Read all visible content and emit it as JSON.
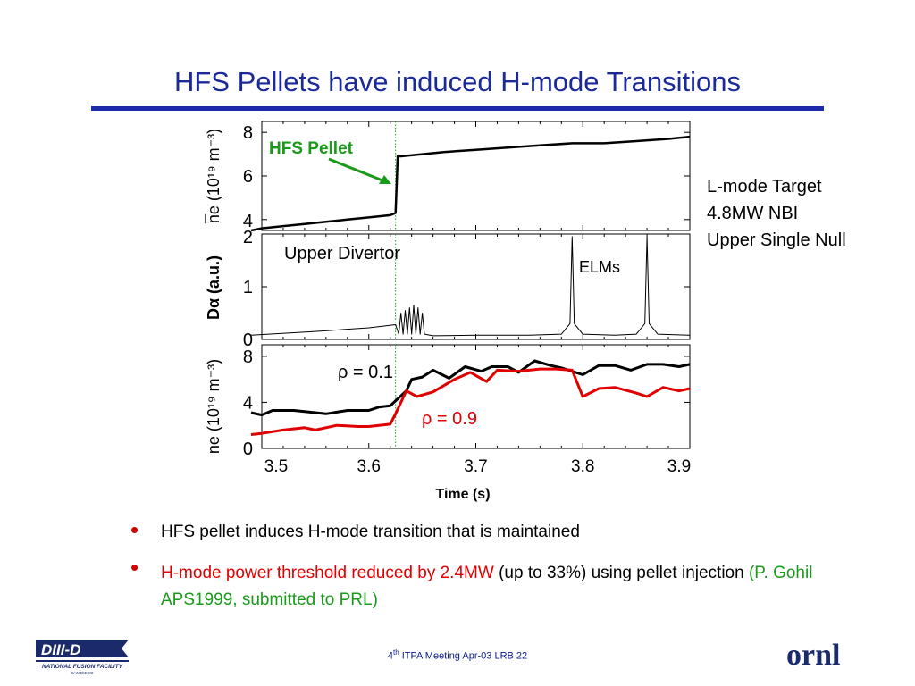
{
  "title": "HFS Pellets have induced H-mode Transitions",
  "side_notes": [
    "L-mode Target",
    "4.8MW NBI",
    "Upper Single Null"
  ],
  "bullets": [
    {
      "parts": [
        {
          "text": "HFS pellet induces H-mode transition that is maintained",
          "color": "black"
        }
      ]
    },
    {
      "parts": [
        {
          "text": "H-mode power threshold reduced by 2.4MW",
          "color": "red"
        },
        {
          "text": " (up to 33%)  using pellet injection  ",
          "color": "black"
        },
        {
          "text": "(P. Gohil  APS1999, submitted to PRL)",
          "color": "green"
        }
      ]
    }
  ],
  "footer": {
    "sup": "th",
    "pre": "4",
    "text": " ITPA Meeting  Apr-03   LRB     22"
  },
  "logos": {
    "left": "DIII-D",
    "left_sub": "NATIONAL FUSION FACILITY",
    "left_sub2": "SAN DIEGO",
    "right": "ornl"
  },
  "colors": {
    "title": "#1a2a9a",
    "accent_rule": "#1a2aa8",
    "red": "#e00000",
    "green": "#1a9a1a"
  },
  "chart_data": [
    {
      "type": "line",
      "ylabel": "n̅e (10¹⁹ m⁻³)",
      "yticks": [
        4,
        6,
        8
      ],
      "ylim": [
        3.5,
        8.5
      ],
      "xlim": [
        3.5,
        3.9
      ],
      "pellet_time": 3.625,
      "annotations": [
        {
          "text": "HFS Pellet",
          "color": "#1a9a1a"
        }
      ],
      "series": [
        {
          "color": "#000000",
          "x": [
            3.49,
            3.5,
            3.52,
            3.54,
            3.56,
            3.58,
            3.6,
            3.62,
            3.625,
            3.627,
            3.63,
            3.65,
            3.67,
            3.7,
            3.73,
            3.76,
            3.79,
            3.82,
            3.85,
            3.88,
            3.9
          ],
          "y": [
            3.5,
            3.6,
            3.7,
            3.8,
            3.9,
            4.0,
            4.1,
            4.2,
            4.3,
            6.9,
            6.9,
            7.0,
            7.1,
            7.2,
            7.3,
            7.4,
            7.5,
            7.5,
            7.6,
            7.7,
            7.8
          ]
        }
      ]
    },
    {
      "type": "line",
      "ylabel": "Dα (a.u.)",
      "yticks": [
        0,
        1,
        2
      ],
      "ylim": [
        0,
        2.0
      ],
      "xlim": [
        3.5,
        3.9
      ],
      "annotations": [
        {
          "text": "Upper Divertor",
          "color": "#000000"
        },
        {
          "text": "ELMs",
          "color": "#000000"
        }
      ],
      "series": [
        {
          "color": "#000000",
          "x": [
            3.49,
            3.55,
            3.6,
            3.625,
            3.628,
            3.63,
            3.632,
            3.634,
            3.636,
            3.638,
            3.64,
            3.642,
            3.644,
            3.646,
            3.648,
            3.65,
            3.652,
            3.66,
            3.7,
            3.75,
            3.78,
            3.788,
            3.79,
            3.792,
            3.8,
            3.83,
            3.85,
            3.858,
            3.86,
            3.862,
            3.87,
            3.9
          ],
          "y": [
            0.08,
            0.15,
            0.22,
            0.28,
            0.1,
            0.5,
            0.1,
            0.55,
            0.1,
            0.6,
            0.1,
            0.65,
            0.1,
            0.6,
            0.1,
            0.5,
            0.1,
            0.07,
            0.08,
            0.08,
            0.1,
            0.3,
            1.95,
            0.3,
            0.1,
            0.08,
            0.1,
            0.3,
            1.95,
            0.3,
            0.1,
            0.08
          ]
        }
      ]
    },
    {
      "type": "line",
      "ylabel": "ne (10¹⁹ m⁻³)",
      "xlabel": "Time (s)",
      "yticks": [
        0,
        4,
        8
      ],
      "xticks": [
        "3.5",
        "3.6",
        "3.7",
        "3.8",
        "3.9"
      ],
      "ylim": [
        0,
        9
      ],
      "xlim": [
        3.5,
        3.9
      ],
      "series": [
        {
          "name": "ρ = 0.1",
          "color": "#000000",
          "x": [
            3.49,
            3.5,
            3.51,
            3.53,
            3.56,
            3.58,
            3.6,
            3.61,
            3.62,
            3.635,
            3.64,
            3.65,
            3.66,
            3.675,
            3.69,
            3.705,
            3.715,
            3.73,
            3.74,
            3.755,
            3.77,
            3.78,
            3.8,
            3.815,
            3.83,
            3.845,
            3.86,
            3.875,
            3.89,
            3.9
          ],
          "y": [
            3.1,
            2.9,
            3.3,
            3.3,
            3.0,
            3.3,
            3.3,
            3.6,
            3.7,
            5.0,
            6.0,
            6.2,
            6.8,
            6.1,
            7.1,
            6.7,
            7.1,
            7.1,
            6.6,
            7.6,
            7.2,
            7.0,
            6.4,
            7.2,
            7.2,
            6.8,
            7.3,
            7.3,
            7.1,
            7.3
          ]
        },
        {
          "name": "ρ = 0.9",
          "color": "#e00000",
          "x": [
            3.49,
            3.5,
            3.52,
            3.54,
            3.55,
            3.57,
            3.59,
            3.6,
            3.62,
            3.625,
            3.635,
            3.645,
            3.66,
            3.68,
            3.695,
            3.71,
            3.72,
            3.74,
            3.76,
            3.775,
            3.79,
            3.8,
            3.815,
            3.83,
            3.85,
            3.86,
            3.875,
            3.89,
            3.9
          ],
          "y": [
            1.2,
            1.3,
            1.6,
            1.8,
            1.6,
            2.0,
            1.9,
            1.9,
            2.1,
            3.0,
            5.0,
            4.5,
            4.9,
            6.0,
            6.6,
            5.8,
            6.8,
            6.7,
            6.9,
            6.9,
            6.8,
            4.5,
            5.2,
            5.3,
            4.8,
            4.5,
            5.3,
            5.0,
            5.2
          ]
        }
      ]
    }
  ]
}
